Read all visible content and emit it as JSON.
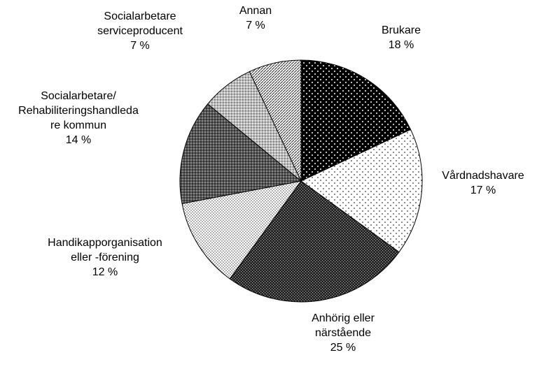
{
  "chart_data": {
    "type": "pie",
    "categories": [
      "Brukare",
      "Vårdnadshavare",
      "Anhörig eller\nnärstående",
      "Handikapporganisation\neller -förening",
      "Socialarbetare/\nRehabiliteringshandleda\nre kommun",
      "Socialarbetare\nserviceproducent",
      "Annan"
    ],
    "values": [
      18,
      17,
      25,
      12,
      14,
      7,
      7
    ],
    "value_labels": [
      "18 %",
      "17 %",
      "25 %",
      "12 %",
      "14 %",
      "7 %",
      "7 %"
    ]
  }
}
